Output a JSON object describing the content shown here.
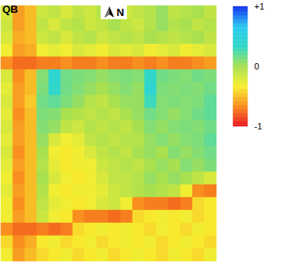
{
  "chart_data": {
    "type": "heatmap",
    "annotations": {
      "top_left": "QB",
      "north": "N"
    },
    "tick_labels": false,
    "cells": [
      [
        -0.2,
        -0.6,
        -0.5,
        -0.15,
        -0.1,
        -0.2,
        -0.1,
        -0.15,
        -0.05,
        -0.1,
        -0.15,
        -0.1,
        -0.05,
        0.05,
        -0.1,
        -0.05,
        0.0,
        -0.1
      ],
      [
        -0.15,
        -0.6,
        -0.5,
        -0.1,
        -0.2,
        -0.1,
        -0.05,
        -0.15,
        -0.1,
        0.0,
        -0.1,
        -0.15,
        -0.05,
        0.05,
        -0.05,
        0.0,
        -0.1,
        -0.05
      ],
      [
        -0.2,
        -0.55,
        -0.5,
        -0.15,
        -0.1,
        -0.2,
        -0.1,
        -0.05,
        -0.15,
        -0.1,
        -0.05,
        -0.1,
        0.0,
        -0.05,
        -0.1,
        -0.05,
        0.0,
        -0.1
      ],
      [
        -0.3,
        -0.6,
        -0.55,
        -0.3,
        -0.25,
        -0.3,
        -0.2,
        -0.25,
        -0.3,
        -0.2,
        -0.25,
        -0.2,
        -0.3,
        -0.25,
        -0.2,
        -0.3,
        -0.25,
        -0.2
      ],
      [
        -0.65,
        -0.75,
        -0.75,
        -0.7,
        -0.7,
        -0.65,
        -0.7,
        -0.7,
        -0.65,
        -0.7,
        -0.7,
        -0.65,
        -0.7,
        -0.65,
        -0.7,
        -0.7,
        -0.65,
        -0.6
      ],
      [
        -0.2,
        -0.65,
        -0.5,
        0.1,
        0.4,
        0.15,
        0.12,
        0.1,
        0.05,
        0.1,
        0.12,
        0.1,
        0.35,
        0.15,
        0.12,
        0.1,
        0.15,
        0.12
      ],
      [
        -0.25,
        -0.6,
        -0.5,
        0.12,
        0.35,
        0.15,
        0.1,
        0.05,
        0.0,
        0.05,
        0.1,
        0.05,
        0.4,
        0.12,
        0.1,
        0.12,
        0.1,
        0.15
      ],
      [
        -0.2,
        -0.6,
        -0.45,
        0.15,
        0.2,
        0.12,
        0.05,
        -0.05,
        -0.1,
        0.0,
        0.05,
        0.05,
        0.3,
        0.1,
        0.12,
        0.1,
        0.12,
        0.2
      ],
      [
        -0.25,
        -0.65,
        -0.5,
        0.12,
        0.1,
        0.0,
        -0.05,
        -0.1,
        -0.05,
        -0.1,
        0.0,
        0.05,
        0.15,
        0.1,
        0.05,
        0.1,
        0.15,
        0.2
      ],
      [
        -0.2,
        -0.6,
        -0.5,
        0.1,
        0.05,
        -0.1,
        -0.15,
        -0.05,
        -0.1,
        -0.05,
        -0.1,
        0.0,
        0.1,
        0.05,
        0.1,
        0.12,
        0.1,
        0.15
      ],
      [
        -0.25,
        -0.6,
        -0.5,
        0.05,
        -0.2,
        -0.3,
        -0.25,
        -0.1,
        -0.05,
        -0.1,
        -0.05,
        -0.05,
        0.05,
        0.1,
        0.05,
        0.1,
        0.12,
        0.2
      ],
      [
        -0.2,
        -0.65,
        -0.5,
        0.0,
        -0.3,
        -0.35,
        -0.3,
        -0.2,
        -0.1,
        -0.05,
        -0.1,
        0.0,
        0.05,
        0.0,
        0.1,
        0.05,
        0.1,
        0.15
      ],
      [
        -0.25,
        -0.6,
        -0.5,
        -0.05,
        -0.25,
        -0.35,
        -0.3,
        -0.3,
        -0.15,
        -0.1,
        -0.05,
        -0.1,
        0.0,
        0.05,
        0.0,
        0.1,
        0.05,
        0.12
      ],
      [
        -0.3,
        -0.65,
        -0.5,
        0.0,
        -0.2,
        -0.3,
        -0.35,
        -0.3,
        -0.2,
        -0.1,
        -0.1,
        -0.05,
        0.05,
        0.0,
        0.05,
        0.0,
        -0.1,
        -0.2
      ],
      [
        -0.25,
        -0.6,
        -0.5,
        -0.05,
        -0.3,
        -0.35,
        -0.3,
        -0.3,
        -0.25,
        -0.15,
        -0.1,
        -0.05,
        0.0,
        -0.05,
        -0.1,
        -0.3,
        -0.65,
        -0.7
      ],
      [
        -0.3,
        -0.65,
        -0.5,
        -0.1,
        -0.25,
        -0.3,
        -0.35,
        -0.3,
        -0.2,
        -0.15,
        -0.3,
        -0.65,
        -0.7,
        -0.7,
        -0.75,
        -0.7,
        -0.4,
        -0.35
      ],
      [
        -0.3,
        -0.6,
        -0.5,
        -0.15,
        -0.3,
        -0.35,
        -0.65,
        -0.7,
        -0.7,
        -0.75,
        -0.7,
        -0.4,
        -0.35,
        -0.3,
        -0.35,
        -0.3,
        -0.4,
        -0.35
      ],
      [
        -0.65,
        -0.75,
        -0.75,
        -0.7,
        -0.75,
        -0.7,
        -0.4,
        -0.35,
        -0.3,
        -0.35,
        -0.3,
        -0.35,
        -0.4,
        -0.3,
        -0.35,
        -0.4,
        -0.3,
        -0.35
      ],
      [
        -0.4,
        -0.65,
        -0.55,
        -0.35,
        -0.3,
        -0.4,
        -0.35,
        -0.3,
        -0.4,
        -0.35,
        -0.3,
        -0.35,
        -0.3,
        -0.4,
        -0.35,
        -0.3,
        -0.35,
        -0.4
      ],
      [
        -0.3,
        -0.6,
        -0.5,
        -0.4,
        -0.35,
        -0.3,
        -0.4,
        -0.35,
        -0.3,
        -0.4,
        -0.35,
        -0.3,
        -0.35,
        -0.4,
        -0.3,
        -0.35,
        -0.4,
        -0.3
      ]
    ],
    "colorbar": {
      "range": [
        -1,
        1
      ],
      "ticks": [
        {
          "value": 1,
          "label": "+1"
        },
        0,
        -1
      ]
    }
  }
}
